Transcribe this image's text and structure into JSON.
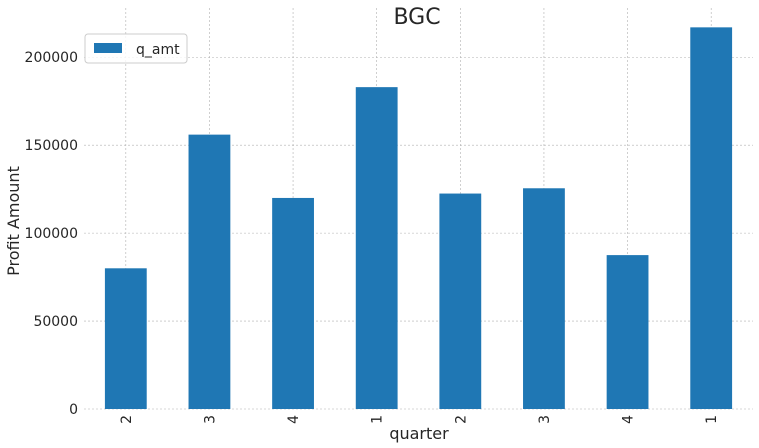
{
  "chart_data": {
    "type": "bar",
    "title": "BGC",
    "xlabel": "quarter",
    "ylabel": "Profit Amount",
    "categories": [
      "2",
      "3",
      "4",
      "1",
      "2",
      "3",
      "4",
      "1"
    ],
    "series": [
      {
        "name": "q_amt",
        "values": [
          80000,
          156000,
          120000,
          183000,
          122500,
          125500,
          87500,
          217000
        ],
        "color": "#1f77b4"
      }
    ],
    "ylim": [
      0,
      228000
    ],
    "yticks": [
      0,
      50000,
      100000,
      150000,
      200000
    ],
    "ytick_labels": [
      "0",
      "50000",
      "100000",
      "150000",
      "200000"
    ],
    "grid": true,
    "legend": "top-left"
  }
}
